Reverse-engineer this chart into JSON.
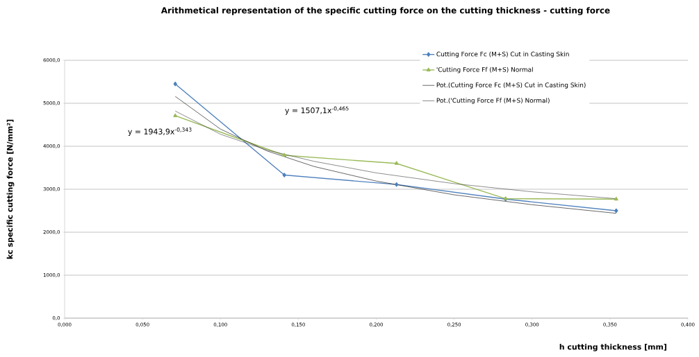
{
  "chart_data": {
    "type": "line",
    "title": "Arithmetical representation of the specific cutting force on the cutting thickness - cutting force",
    "xlabel": "h cutting thickness [mm]",
    "ylabel": "kc specific cutting force [N/mm²]",
    "x": [
      0.071,
      0.141,
      0.213,
      0.283,
      0.354
    ],
    "series": [
      {
        "name": "Cutting Force Fc (M+S) Cut in Casting Skin",
        "color": "#4f81bd",
        "marker": "diamond",
        "values": [
          5450,
          3330,
          3110,
          2770,
          2500
        ]
      },
      {
        "name": "'Cutting Force Ff (M+S)  Normal",
        "color": "#9bbb59",
        "marker": "triangle",
        "values": [
          4710,
          3790,
          3600,
          2780,
          2770
        ]
      },
      {
        "name": "Pot.(Cutting Force Fc (M+S) Cut in Casting Skin)",
        "color": "#000000",
        "marker": "none",
        "x": [
          0.071,
          0.1,
          0.13,
          0.16,
          0.2,
          0.25,
          0.3,
          0.354
        ],
        "values": [
          5160,
          4400,
          3890,
          3530,
          3190,
          2870,
          2640,
          2440
        ]
      },
      {
        "name": "Pot.('Cutting Force Ff (M+S) Normal)",
        "color": "#404040",
        "marker": "none",
        "x": [
          0.071,
          0.1,
          0.13,
          0.16,
          0.2,
          0.25,
          0.3,
          0.354
        ],
        "values": [
          4820,
          4280,
          3910,
          3650,
          3380,
          3130,
          2940,
          2780
        ]
      }
    ],
    "xlim": [
      0,
      0.4
    ],
    "ylim": [
      0,
      6000
    ],
    "xticks": [
      {
        "value": 0,
        "label": "0,000"
      },
      {
        "value": 0.05,
        "label": "0,050"
      },
      {
        "value": 0.1,
        "label": "0,100"
      },
      {
        "value": 0.15,
        "label": "0,150"
      },
      {
        "value": 0.2,
        "label": "0,200"
      },
      {
        "value": 0.25,
        "label": "0,250"
      },
      {
        "value": 0.3,
        "label": "0,300"
      },
      {
        "value": 0.35,
        "label": "0,350"
      },
      {
        "value": 0.4,
        "label": "0,400"
      }
    ],
    "yticks": [
      {
        "value": 0,
        "label": "0,0"
      },
      {
        "value": 1000,
        "label": "1000,0"
      },
      {
        "value": 2000,
        "label": "2000,0"
      },
      {
        "value": 3000,
        "label": "3000,0"
      },
      {
        "value": 4000,
        "label": "4000,0"
      },
      {
        "value": 5000,
        "label": "5000,0"
      },
      {
        "value": 6000,
        "label": "6000,0"
      }
    ],
    "annotations": [
      "y = 1943,9x$^{-0,343}$",
      "y = 1507,1x$^{-0,465}$"
    ],
    "grid": "y",
    "legend": "top right",
    "line_style": "solid"
  }
}
